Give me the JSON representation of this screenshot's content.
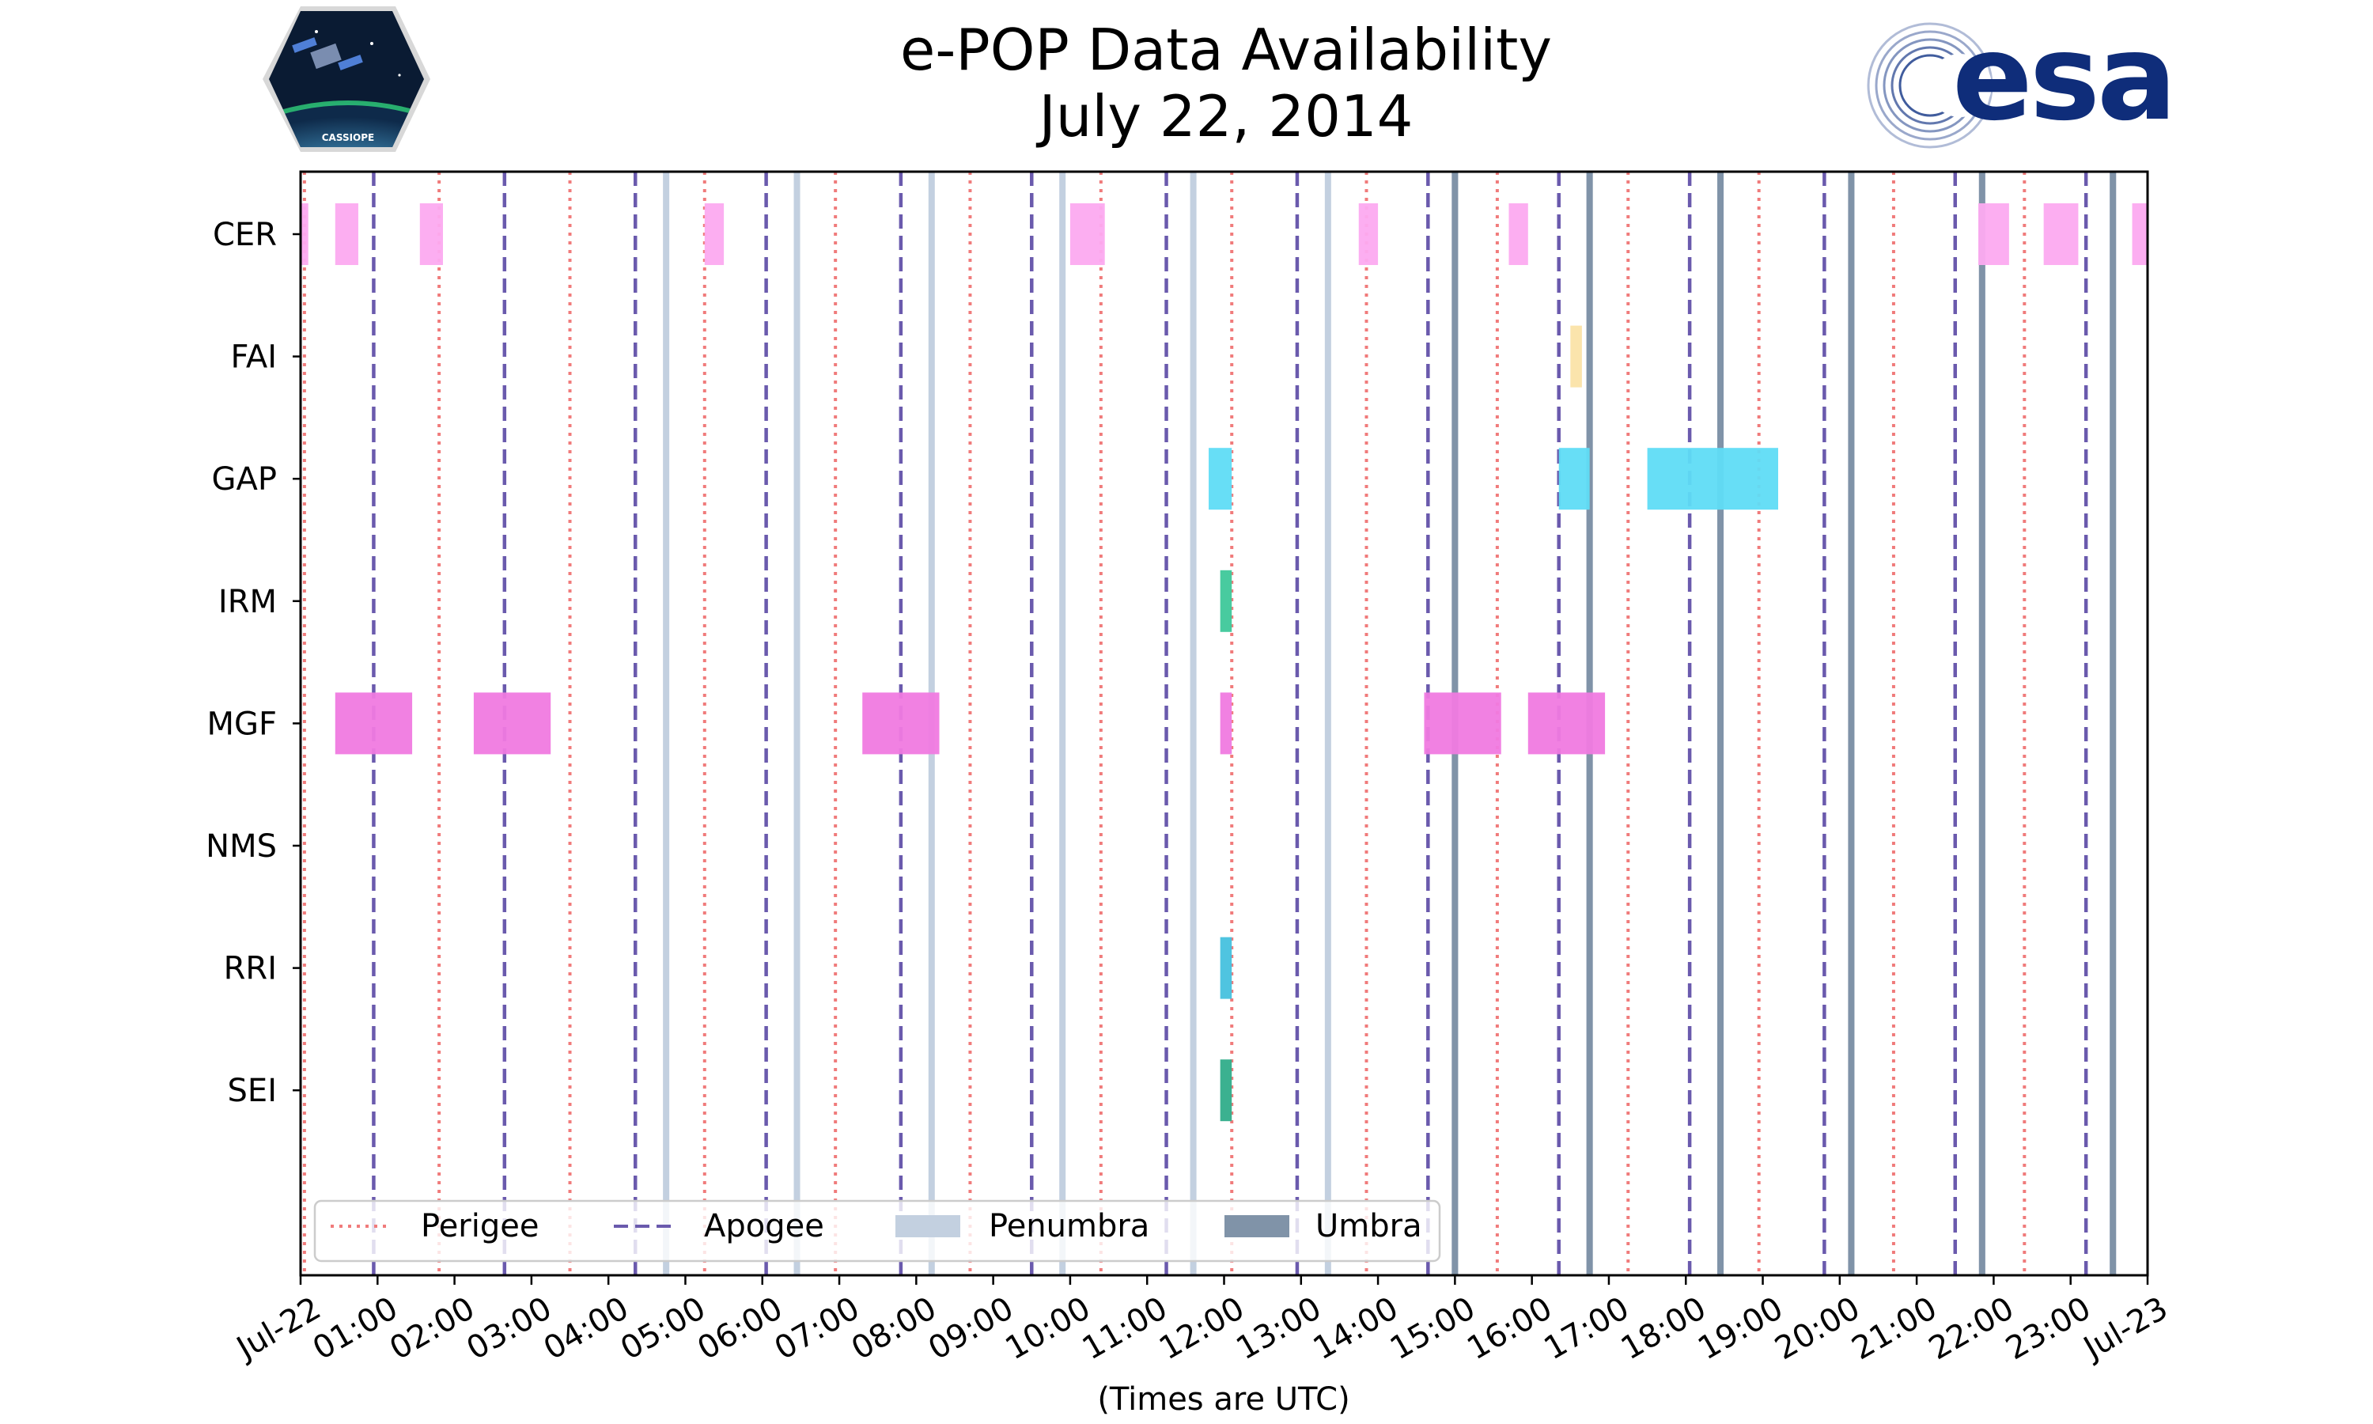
{
  "logos": {
    "left_text": "CASSIOPE",
    "right_text": "esa"
  },
  "colors": {
    "perigee": "#f07b7b",
    "apogee": "#6a5aad",
    "penumbra": "#c3d0e0",
    "umbra": "#8093a8",
    "CER": "#fcaaf0",
    "FAI": "#fbe3a8",
    "GAP": "#5fdcf6",
    "IRM": "#3ec89a",
    "MGF": "#f07ae0",
    "NMS": "#999999",
    "RRI": "#46c1de",
    "SEI": "#30ad8a"
  },
  "chart_data": {
    "type": "timeline",
    "title": "e-POP Data Availability",
    "subtitle": "July 22, 2014",
    "xlabel": "(Times are UTC)",
    "x_unit": "hours UTC",
    "xlim": [
      0,
      24
    ],
    "x_ticks": [
      {
        "v": 0,
        "label": "Jul-22"
      },
      {
        "v": 1,
        "label": "01:00"
      },
      {
        "v": 2,
        "label": "02:00"
      },
      {
        "v": 3,
        "label": "03:00"
      },
      {
        "v": 4,
        "label": "04:00"
      },
      {
        "v": 5,
        "label": "05:00"
      },
      {
        "v": 6,
        "label": "06:00"
      },
      {
        "v": 7,
        "label": "07:00"
      },
      {
        "v": 8,
        "label": "08:00"
      },
      {
        "v": 9,
        "label": "09:00"
      },
      {
        "v": 10,
        "label": "10:00"
      },
      {
        "v": 11,
        "label": "11:00"
      },
      {
        "v": 12,
        "label": "12:00"
      },
      {
        "v": 13,
        "label": "13:00"
      },
      {
        "v": 14,
        "label": "14:00"
      },
      {
        "v": 15,
        "label": "15:00"
      },
      {
        "v": 16,
        "label": "16:00"
      },
      {
        "v": 17,
        "label": "17:00"
      },
      {
        "v": 18,
        "label": "18:00"
      },
      {
        "v": 19,
        "label": "19:00"
      },
      {
        "v": 20,
        "label": "20:00"
      },
      {
        "v": 21,
        "label": "21:00"
      },
      {
        "v": 22,
        "label": "22:00"
      },
      {
        "v": 23,
        "label": "23:00"
      },
      {
        "v": 24,
        "label": "Jul-23"
      }
    ],
    "instruments": [
      "CER",
      "FAI",
      "GAP",
      "IRM",
      "MGF",
      "NMS",
      "RRI",
      "SEI"
    ],
    "intervals": {
      "CER": [
        [
          0.0,
          0.1
        ],
        [
          0.45,
          0.75
        ],
        [
          1.55,
          1.85
        ],
        [
          5.25,
          5.5
        ],
        [
          10.0,
          10.45
        ],
        [
          13.75,
          14.0
        ],
        [
          15.7,
          15.95
        ],
        [
          21.8,
          22.2
        ],
        [
          22.65,
          23.1
        ],
        [
          23.8,
          24.0
        ]
      ],
      "FAI": [
        [
          16.5,
          16.65
        ]
      ],
      "GAP": [
        [
          11.8,
          12.1
        ],
        [
          16.35,
          16.75
        ],
        [
          17.5,
          19.2
        ]
      ],
      "IRM": [
        [
          11.95,
          12.1
        ]
      ],
      "MGF": [
        [
          0.45,
          1.45
        ],
        [
          2.25,
          3.25
        ],
        [
          7.3,
          8.3
        ],
        [
          11.95,
          12.1
        ],
        [
          14.6,
          15.6
        ],
        [
          15.95,
          16.95
        ]
      ],
      "NMS": [],
      "RRI": [
        [
          11.95,
          12.1
        ]
      ],
      "SEI": [
        [
          11.95,
          12.1
        ]
      ]
    },
    "perigee_times": [
      0.05,
      1.8,
      3.5,
      5.25,
      6.95,
      8.7,
      10.4,
      12.1,
      13.85,
      15.55,
      17.25,
      18.95,
      20.7,
      22.4
    ],
    "apogee_times": [
      0.95,
      2.65,
      4.35,
      6.05,
      7.8,
      9.5,
      11.25,
      12.95,
      14.65,
      16.35,
      18.05,
      19.8,
      21.5,
      23.2
    ],
    "penumbra_times": [
      4.75,
      6.45,
      8.2,
      9.9,
      11.6,
      13.35,
      15.0,
      16.75,
      18.45,
      20.15,
      21.85,
      23.55
    ],
    "umbra_times": [
      15.0,
      16.75,
      18.45,
      20.15,
      21.85,
      23.55
    ],
    "legend": {
      "position": "lower-left",
      "entries": [
        {
          "label": "Perigee",
          "style": "dotted",
          "color_key": "perigee"
        },
        {
          "label": "Apogee",
          "style": "dashed",
          "color_key": "apogee"
        },
        {
          "label": "Penumbra",
          "style": "patch",
          "color_key": "penumbra"
        },
        {
          "label": "Umbra",
          "style": "patch",
          "color_key": "umbra"
        }
      ]
    }
  }
}
